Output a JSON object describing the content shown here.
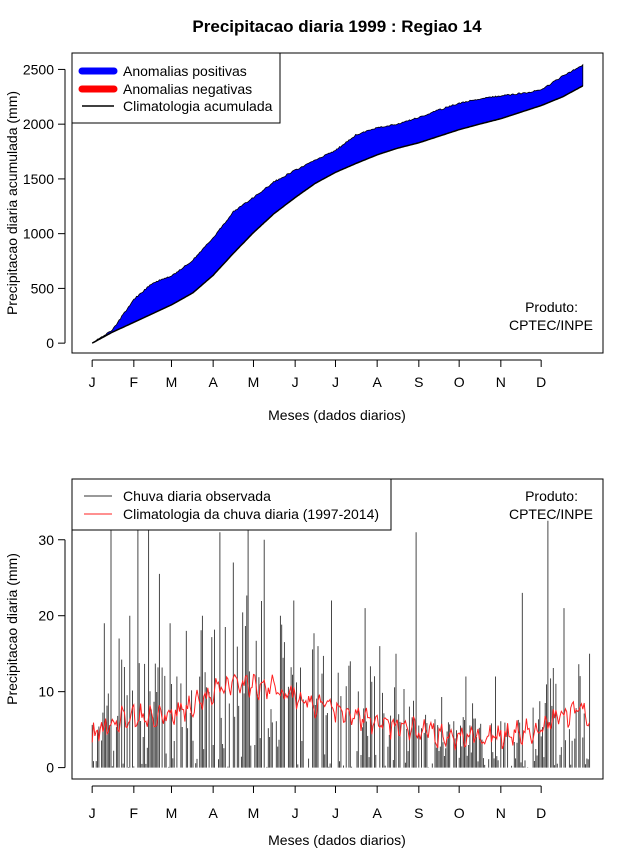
{
  "title": "Precipitacao diaria 1999 : Regiao 14",
  "credit": {
    "line1": "Produto:",
    "line2": "CPTEC/INPE"
  },
  "months": [
    "J",
    "F",
    "M",
    "A",
    "M",
    "J",
    "J",
    "A",
    "S",
    "O",
    "N",
    "D"
  ],
  "colors": {
    "positive": "#0000ff",
    "negative": "#ff0000",
    "clim": "#000000",
    "observed": "#333333",
    "clim_daily": "#ff2020"
  },
  "chart_data": [
    {
      "type": "area",
      "name": "accumulated",
      "ylabel": "Precipitacao diaria acumulada (mm)",
      "xlabel": "Meses (dados diarios)",
      "yticks": [
        0,
        500,
        1000,
        1500,
        2000,
        2500
      ],
      "ylim": [
        -90,
        2650
      ],
      "xlim": [
        -15,
        380
      ],
      "legend": [
        "Anomalias positivas",
        "Anomalias negativas",
        "Climatologia acumulada"
      ],
      "day": [
        0,
        15,
        31,
        45,
        59,
        75,
        90,
        105,
        120,
        135,
        151,
        166,
        181,
        196,
        212,
        227,
        243,
        258,
        273,
        288,
        304,
        319,
        334,
        350,
        365
      ],
      "observed_cum": [
        0,
        120,
        400,
        550,
        610,
        760,
        960,
        1200,
        1330,
        1470,
        1580,
        1670,
        1760,
        1900,
        1970,
        2000,
        2060,
        2130,
        2190,
        2230,
        2260,
        2280,
        2310,
        2440,
        2540
      ],
      "climatology_cum": [
        0,
        100,
        190,
        270,
        350,
        460,
        620,
        820,
        1010,
        1180,
        1330,
        1460,
        1560,
        1640,
        1720,
        1780,
        1830,
        1890,
        1950,
        2000,
        2050,
        2110,
        2170,
        2250,
        2350
      ]
    },
    {
      "type": "line",
      "name": "daily",
      "ylabel": "Precipitacao diaria (mm)",
      "xlabel": "Meses (dados diarios)",
      "yticks": [
        0,
        10,
        20,
        30
      ],
      "ylim": [
        -1.5,
        38
      ],
      "xlim": [
        -15,
        380
      ],
      "legend": [
        "Chuva diaria observada",
        "Climatologia da chuva diaria (1997-2014)"
      ],
      "observed_series": "Chuva diaria observada (1999)",
      "climatology_series": "Climatologia da chuva diaria (1997-2014)",
      "peaks": [
        {
          "day": 9,
          "mm": 19
        },
        {
          "day": 14,
          "mm": 32
        },
        {
          "day": 20,
          "mm": 17
        },
        {
          "day": 28,
          "mm": 20
        },
        {
          "day": 34,
          "mm": 32.5
        },
        {
          "day": 42,
          "mm": 31.5
        },
        {
          "day": 50,
          "mm": 25.5
        },
        {
          "day": 58,
          "mm": 19
        },
        {
          "day": 70,
          "mm": 18
        },
        {
          "day": 82,
          "mm": 20
        },
        {
          "day": 95,
          "mm": 31
        },
        {
          "day": 105,
          "mm": 27
        },
        {
          "day": 116,
          "mm": 32
        },
        {
          "day": 128,
          "mm": 30
        },
        {
          "day": 140,
          "mm": 20
        },
        {
          "day": 150,
          "mm": 22
        },
        {
          "day": 168,
          "mm": 16
        },
        {
          "day": 178,
          "mm": 22
        },
        {
          "day": 192,
          "mm": 14
        },
        {
          "day": 203,
          "mm": 21
        },
        {
          "day": 214,
          "mm": 16
        },
        {
          "day": 226,
          "mm": 15
        },
        {
          "day": 241,
          "mm": 31
        },
        {
          "day": 278,
          "mm": 12
        },
        {
          "day": 300,
          "mm": 12
        },
        {
          "day": 320,
          "mm": 23
        },
        {
          "day": 339,
          "mm": 32.5
        },
        {
          "day": 351,
          "mm": 21
        },
        {
          "day": 370,
          "mm": 15
        }
      ],
      "climatology_daily": [
        {
          "day": 0,
          "mm": 4
        },
        {
          "day": 15,
          "mm": 6
        },
        {
          "day": 30,
          "mm": 7
        },
        {
          "day": 45,
          "mm": 6.5
        },
        {
          "day": 60,
          "mm": 7
        },
        {
          "day": 75,
          "mm": 8
        },
        {
          "day": 90,
          "mm": 10
        },
        {
          "day": 105,
          "mm": 11
        },
        {
          "day": 120,
          "mm": 11
        },
        {
          "day": 135,
          "mm": 10.5
        },
        {
          "day": 150,
          "mm": 9.5
        },
        {
          "day": 165,
          "mm": 8.5
        },
        {
          "day": 180,
          "mm": 7.5
        },
        {
          "day": 195,
          "mm": 6.5
        },
        {
          "day": 210,
          "mm": 6
        },
        {
          "day": 225,
          "mm": 5.5
        },
        {
          "day": 240,
          "mm": 5
        },
        {
          "day": 255,
          "mm": 4.5
        },
        {
          "day": 270,
          "mm": 4
        },
        {
          "day": 285,
          "mm": 4
        },
        {
          "day": 300,
          "mm": 4
        },
        {
          "day": 315,
          "mm": 4.5
        },
        {
          "day": 330,
          "mm": 5
        },
        {
          "day": 345,
          "mm": 6.5
        },
        {
          "day": 360,
          "mm": 7.5
        },
        {
          "day": 375,
          "mm": 6.5
        }
      ]
    }
  ]
}
